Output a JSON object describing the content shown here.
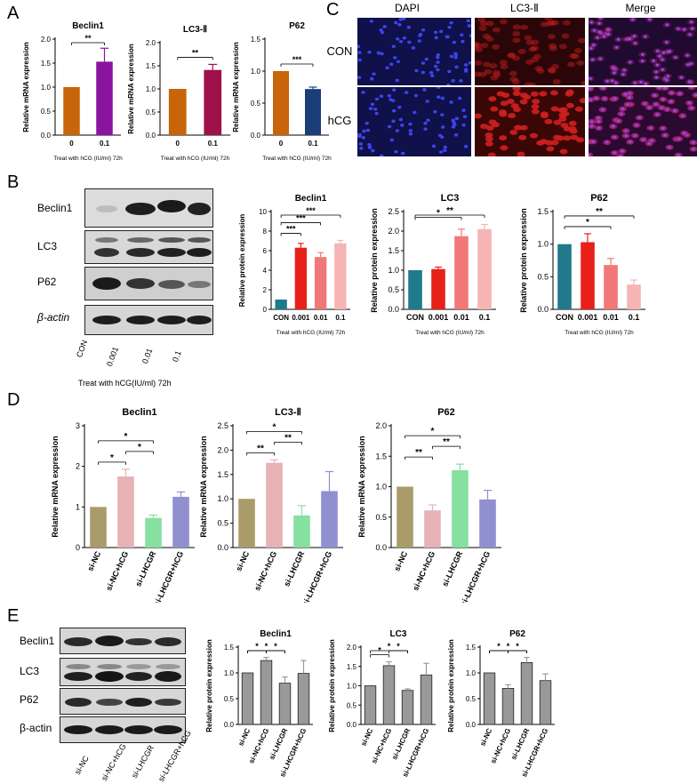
{
  "panels": {
    "A": "A",
    "B": "B",
    "C": "C",
    "D": "D",
    "E": "E"
  },
  "panelC": {
    "columns": [
      "DAPI",
      "LC3-Ⅱ",
      "Merge"
    ],
    "rows": [
      "CON",
      "hCG"
    ]
  },
  "panelB_blot": {
    "bands": [
      "Beclin1",
      "LC3",
      "P62",
      "β-actin"
    ],
    "lanes": [
      "CON",
      "0.001",
      "0.01",
      "0.1"
    ],
    "xlabel": "Treat with hCG(IU/ml)  72h"
  },
  "panelE_blot": {
    "bands": [
      "Beclin1",
      "LC3",
      "P62",
      "β-actin"
    ],
    "lanes": [
      "si-NC",
      "si-NC+hCG",
      "si-LHCGR",
      "si-LHCGR+hCG"
    ]
  },
  "chart_data": [
    {
      "id": "A1",
      "type": "bar",
      "title": "Beclin1",
      "ylabel": "Relative mRNA expression",
      "xlabel": "Treat with hCG (IU/ml)  72h",
      "categories": [
        "0",
        "0.1"
      ],
      "values": [
        1.0,
        1.53
      ],
      "errors": [
        0,
        0.28
      ],
      "ylim": [
        0,
        2.0
      ],
      "yticks": [
        "0.0",
        "0.5",
        "1.0",
        "1.5",
        "2.0"
      ],
      "colors": [
        "#c8640a",
        "#8a14a0"
      ],
      "sig": [
        {
          "a": 0,
          "b": 1,
          "label": "**"
        }
      ]
    },
    {
      "id": "A2",
      "type": "bar",
      "title": "LC3-Ⅱ",
      "ylabel": "Relative mRNA expression",
      "xlabel": "Treat with hCG (IU/ml)  72h",
      "categories": [
        "0",
        "0.1"
      ],
      "values": [
        1.0,
        1.41
      ],
      "errors": [
        0,
        0.12
      ],
      "ylim": [
        0,
        2.0
      ],
      "yticks": [
        "0.0",
        "0.5",
        "1.0",
        "1.5",
        "2.0"
      ],
      "colors": [
        "#c8640a",
        "#a0104a"
      ],
      "sig": [
        {
          "a": 0,
          "b": 1,
          "label": "**"
        }
      ]
    },
    {
      "id": "A3",
      "type": "bar",
      "title": "P62",
      "ylabel": "Relative mRNA expression",
      "xlabel": "Treat with hCG (IU/ml)  72h",
      "categories": [
        "0",
        "0.1"
      ],
      "values": [
        1.0,
        0.72
      ],
      "errors": [
        0,
        0.03
      ],
      "ylim": [
        0,
        1.5
      ],
      "yticks": [
        "0.0",
        "0.5",
        "1.0",
        "1.5"
      ],
      "colors": [
        "#c8640a",
        "#1a3e78"
      ],
      "sig": [
        {
          "a": 0,
          "b": 1,
          "label": "***"
        }
      ]
    },
    {
      "id": "B1",
      "type": "bar",
      "title": "Beclin1",
      "ylabel": "Relative protein expression",
      "xlabel": "Treat with hCG (IU/ml)  72h",
      "categories": [
        "CON",
        "0.001",
        "0.01",
        "0.1"
      ],
      "values": [
        1.0,
        6.3,
        5.35,
        6.75
      ],
      "errors": [
        0,
        0.45,
        0.45,
        0.3
      ],
      "ylim": [
        0,
        10
      ],
      "yticks": [
        "0",
        "2",
        "4",
        "6",
        "8",
        "10"
      ],
      "colors": [
        "#1f7a8c",
        "#e8201a",
        "#f07878",
        "#f6b4b4"
      ],
      "sig": [
        {
          "a": 0,
          "b": 1,
          "label": "***"
        },
        {
          "a": 0,
          "b": 2,
          "label": "***"
        },
        {
          "a": 0,
          "b": 3,
          "label": "***"
        }
      ]
    },
    {
      "id": "B2",
      "type": "bar",
      "title": "LC3",
      "ylabel": "Relative protein expression",
      "xlabel": "Treat with hCG (IU/ml)  72h",
      "categories": [
        "CON",
        "0.001",
        "0.01",
        "0.1"
      ],
      "values": [
        1.0,
        1.03,
        1.87,
        2.05
      ],
      "errors": [
        0,
        0.05,
        0.18,
        0.12
      ],
      "ylim": [
        0,
        2.5
      ],
      "yticks": [
        "0.0",
        "0.5",
        "1.0",
        "1.5",
        "2.0",
        "2.5"
      ],
      "colors": [
        "#1f7a8c",
        "#e8201a",
        "#f07878",
        "#f6b4b4"
      ],
      "sig": [
        {
          "a": 0,
          "b": 2,
          "label": "*"
        },
        {
          "a": 0,
          "b": 3,
          "label": "**"
        }
      ]
    },
    {
      "id": "B3",
      "type": "bar",
      "title": "P62",
      "ylabel": "Relative protein expression",
      "xlabel": "Treat with hCG (IU/ml)  72h",
      "categories": [
        "CON",
        "0.001",
        "0.01",
        "0.1"
      ],
      "values": [
        1.0,
        1.03,
        0.68,
        0.38
      ],
      "errors": [
        0,
        0.13,
        0.1,
        0.07
      ],
      "ylim": [
        0,
        1.5
      ],
      "yticks": [
        "0.0",
        "0.5",
        "1.0",
        "1.5"
      ],
      "colors": [
        "#1f7a8c",
        "#e8201a",
        "#f07878",
        "#f6b4b4"
      ],
      "sig": [
        {
          "a": 0,
          "b": 2,
          "label": "*"
        },
        {
          "a": 0,
          "b": 3,
          "label": "**"
        }
      ]
    },
    {
      "id": "D1",
      "type": "bar",
      "title": "Beclin1",
      "ylabel": "Relative mRNA expression",
      "categories": [
        "si-NC",
        "si-NC+hCG",
        "si-LHCGR",
        "si-LHCGR+hCG"
      ],
      "values": [
        1.0,
        1.75,
        0.73,
        1.25
      ],
      "errors": [
        0,
        0.18,
        0.07,
        0.12
      ],
      "ylim": [
        0,
        3
      ],
      "yticks": [
        "0",
        "1",
        "2",
        "3"
      ],
      "colors": [
        "#a99c6a",
        "#e6b2b6",
        "#86e0a0",
        "#9090d0"
      ],
      "sig": [
        {
          "a": 0,
          "b": 1,
          "label": "*"
        },
        {
          "a": 1,
          "b": 2,
          "label": "*"
        },
        {
          "a": 0,
          "b": 2,
          "label": "*"
        }
      ]
    },
    {
      "id": "D2",
      "type": "bar",
      "title": "LC3-Ⅱ",
      "ylabel": "Relative mRNA expression",
      "categories": [
        "si-NC",
        "si-NC+hCG",
        "si-LHCGR",
        "si-LHCGR+hCG"
      ],
      "values": [
        1.0,
        1.74,
        0.66,
        1.16
      ],
      "errors": [
        0,
        0.06,
        0.2,
        0.4
      ],
      "ylim": [
        0,
        2.5
      ],
      "yticks": [
        "0.0",
        "0.5",
        "1.0",
        "1.5",
        "2.0",
        "2.5"
      ],
      "colors": [
        "#a99c6a",
        "#e6b2b6",
        "#86e0a0",
        "#9090d0"
      ],
      "sig": [
        {
          "a": 0,
          "b": 1,
          "label": "**"
        },
        {
          "a": 1,
          "b": 2,
          "label": "**"
        },
        {
          "a": 0,
          "b": 2,
          "label": "*"
        }
      ]
    },
    {
      "id": "D3",
      "type": "bar",
      "title": "P62",
      "ylabel": "Relative mRNA expression",
      "categories": [
        "si-NC",
        "si-NC+hCG",
        "si-LHCGR",
        "si-LHCGR+hCG"
      ],
      "values": [
        1.0,
        0.61,
        1.27,
        0.79
      ],
      "errors": [
        0,
        0.09,
        0.1,
        0.15
      ],
      "ylim": [
        0,
        2.0
      ],
      "yticks": [
        "0.0",
        "0.5",
        "1.0",
        "1.5",
        "2.0"
      ],
      "colors": [
        "#a99c6a",
        "#e6b2b6",
        "#86e0a0",
        "#9090d0"
      ],
      "sig": [
        {
          "a": 0,
          "b": 1,
          "label": "**"
        },
        {
          "a": 1,
          "b": 2,
          "label": "**"
        },
        {
          "a": 0,
          "b": 2,
          "label": "*"
        }
      ]
    },
    {
      "id": "E1",
      "type": "bar",
      "title": "Beclin1",
      "ylabel": "Relative protein expression",
      "categories": [
        "si-NC",
        "si-NC+hCG",
        "si-LHCGR",
        "si-LHCGR+hCG"
      ],
      "values": [
        1.0,
        1.24,
        0.8,
        0.99
      ],
      "errors": [
        0,
        0.06,
        0.12,
        0.25
      ],
      "ylim": [
        0,
        1.5
      ],
      "yticks": [
        "0.0",
        "0.5",
        "1.0",
        "1.5"
      ],
      "colors": [
        "#999999",
        "#999999",
        "#999999",
        "#999999"
      ],
      "sig": [
        {
          "a": 0,
          "b": 1,
          "label": "*"
        },
        {
          "a": 1,
          "b": 2,
          "label": "*"
        },
        {
          "a": 0,
          "b": 2,
          "label": "*"
        }
      ]
    },
    {
      "id": "E2",
      "type": "bar",
      "title": "LC3",
      "ylabel": "Relative protein expression",
      "categories": [
        "si-NC",
        "si-NC+hCG",
        "si-LHCGR",
        "si-LHCGR+hCG"
      ],
      "values": [
        1.0,
        1.52,
        0.88,
        1.28
      ],
      "errors": [
        0,
        0.1,
        0.04,
        0.3
      ],
      "ylim": [
        0,
        2.0
      ],
      "yticks": [
        "0.0",
        "0.5",
        "1.0",
        "1.5",
        "2.0"
      ],
      "colors": [
        "#999999",
        "#999999",
        "#999999",
        "#999999"
      ],
      "sig": [
        {
          "a": 0,
          "b": 1,
          "label": "*"
        },
        {
          "a": 1,
          "b": 2,
          "label": "*"
        },
        {
          "a": 0,
          "b": 2,
          "label": "*"
        }
      ]
    },
    {
      "id": "E3",
      "type": "bar",
      "title": "P62",
      "ylabel": "Relative protein expression",
      "categories": [
        "si-NC",
        "si-NC+hCG",
        "si-LHCGR",
        "si-LHCGR+hCG"
      ],
      "values": [
        1.0,
        0.7,
        1.2,
        0.85
      ],
      "errors": [
        0,
        0.07,
        0.1,
        0.13
      ],
      "ylim": [
        0,
        1.5
      ],
      "yticks": [
        "0.0",
        "0.5",
        "1.0",
        "1.5"
      ],
      "colors": [
        "#999999",
        "#999999",
        "#999999",
        "#999999"
      ],
      "sig": [
        {
          "a": 0,
          "b": 1,
          "label": "*"
        },
        {
          "a": 1,
          "b": 2,
          "label": "*"
        },
        {
          "a": 0,
          "b": 2,
          "label": "*"
        }
      ]
    }
  ]
}
